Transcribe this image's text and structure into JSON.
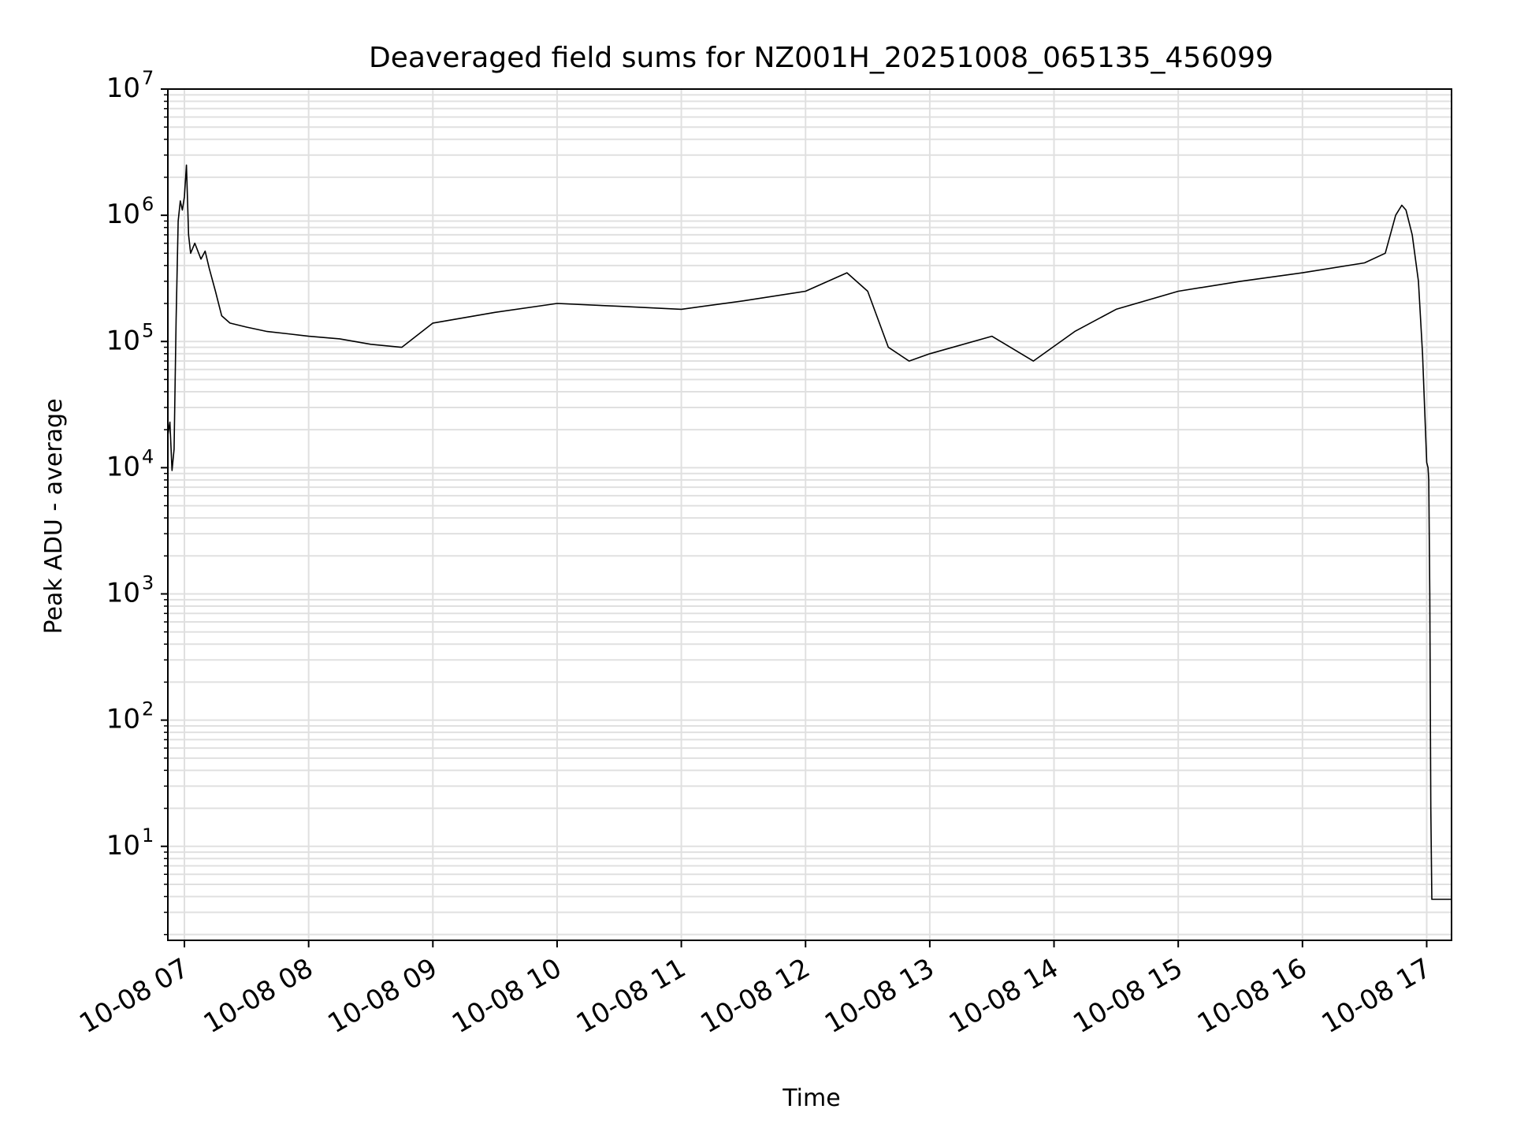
{
  "colors": {
    "line": "#000000",
    "grid": "#e0e0e0",
    "frame": "#000000",
    "background": "#ffffff"
  },
  "chart_data": {
    "type": "line",
    "title": "Deaveraged field sums for NZ001H_20251008_065135_456099",
    "xlabel": "Time",
    "ylabel": "Peak ADU - average",
    "yscale": "log",
    "xlim": [
      "2025-10-08 06:52",
      "2025-10-08 17:12"
    ],
    "ylim": [
      1.8,
      10000000
    ],
    "grid": true,
    "x_ticks": [
      {
        "t": "2025-10-08 07:00",
        "label": "10-08 07"
      },
      {
        "t": "2025-10-08 08:00",
        "label": "10-08 08"
      },
      {
        "t": "2025-10-08 09:00",
        "label": "10-08 09"
      },
      {
        "t": "2025-10-08 10:00",
        "label": "10-08 10"
      },
      {
        "t": "2025-10-08 11:00",
        "label": "10-08 11"
      },
      {
        "t": "2025-10-08 12:00",
        "label": "10-08 12"
      },
      {
        "t": "2025-10-08 13:00",
        "label": "10-08 13"
      },
      {
        "t": "2025-10-08 14:00",
        "label": "10-08 14"
      },
      {
        "t": "2025-10-08 15:00",
        "label": "10-08 15"
      },
      {
        "t": "2025-10-08 16:00",
        "label": "10-08 16"
      },
      {
        "t": "2025-10-08 17:00",
        "label": "10-08 17"
      }
    ],
    "y_ticks": [
      {
        "v": 10,
        "base": "10",
        "exp": "1"
      },
      {
        "v": 100,
        "base": "10",
        "exp": "2"
      },
      {
        "v": 1000,
        "base": "10",
        "exp": "3"
      },
      {
        "v": 10000,
        "base": "10",
        "exp": "4"
      },
      {
        "v": 100000,
        "base": "10",
        "exp": "5"
      },
      {
        "v": 1000000,
        "base": "10",
        "exp": "6"
      },
      {
        "v": 10000000,
        "base": "10",
        "exp": "7"
      }
    ],
    "series": [
      {
        "color": "#000000",
        "points": [
          [
            "2025-10-08 06:52",
            18000
          ],
          [
            "2025-10-08 06:53",
            23000
          ],
          [
            "2025-10-08 06:54",
            9500
          ],
          [
            "2025-10-08 06:55",
            14000
          ],
          [
            "2025-10-08 06:56",
            150000
          ],
          [
            "2025-10-08 06:57",
            900000
          ],
          [
            "2025-10-08 06:58",
            1300000
          ],
          [
            "2025-10-08 06:59",
            1100000
          ],
          [
            "2025-10-08 07:00",
            1400000
          ],
          [
            "2025-10-08 07:01",
            2500000
          ],
          [
            "2025-10-08 07:02",
            700000
          ],
          [
            "2025-10-08 07:03",
            500000
          ],
          [
            "2025-10-08 07:05",
            600000
          ],
          [
            "2025-10-08 07:08",
            450000
          ],
          [
            "2025-10-08 07:10",
            520000
          ],
          [
            "2025-10-08 07:12",
            380000
          ],
          [
            "2025-10-08 07:15",
            250000
          ],
          [
            "2025-10-08 07:18",
            160000
          ],
          [
            "2025-10-08 07:22",
            140000
          ],
          [
            "2025-10-08 07:30",
            130000
          ],
          [
            "2025-10-08 07:40",
            120000
          ],
          [
            "2025-10-08 07:50",
            115000
          ],
          [
            "2025-10-08 08:00",
            110000
          ],
          [
            "2025-10-08 08:15",
            105000
          ],
          [
            "2025-10-08 08:30",
            95000
          ],
          [
            "2025-10-08 08:45",
            90000
          ],
          [
            "2025-10-08 09:00",
            140000
          ],
          [
            "2025-10-08 09:30",
            170000
          ],
          [
            "2025-10-08 10:00",
            200000
          ],
          [
            "2025-10-08 10:30",
            190000
          ],
          [
            "2025-10-08 11:00",
            180000
          ],
          [
            "2025-10-08 11:30",
            210000
          ],
          [
            "2025-10-08 12:00",
            250000
          ],
          [
            "2025-10-08 12:20",
            350000
          ],
          [
            "2025-10-08 12:30",
            250000
          ],
          [
            "2025-10-08 12:40",
            90000
          ],
          [
            "2025-10-08 12:50",
            70000
          ],
          [
            "2025-10-08 13:00",
            80000
          ],
          [
            "2025-10-08 13:30",
            110000
          ],
          [
            "2025-10-08 13:50",
            70000
          ],
          [
            "2025-10-08 14:10",
            120000
          ],
          [
            "2025-10-08 14:30",
            180000
          ],
          [
            "2025-10-08 15:00",
            250000
          ],
          [
            "2025-10-08 15:30",
            300000
          ],
          [
            "2025-10-08 16:00",
            350000
          ],
          [
            "2025-10-08 16:30",
            420000
          ],
          [
            "2025-10-08 16:40",
            500000
          ],
          [
            "2025-10-08 16:45",
            1000000
          ],
          [
            "2025-10-08 16:48",
            1200000
          ],
          [
            "2025-10-08 16:50",
            1100000
          ],
          [
            "2025-10-08 16:53",
            700000
          ],
          [
            "2025-10-08 16:56",
            300000
          ],
          [
            "2025-10-08 16:58",
            80000
          ],
          [
            "2025-10-08 16:59",
            30000
          ],
          [
            "2025-10-08 17:00",
            11000
          ],
          [
            "2025-10-08 17:00:40",
            10000
          ],
          [
            "2025-10-08 17:01",
            8000
          ],
          [
            "2025-10-08 17:01:30",
            1000
          ],
          [
            "2025-10-08 17:02",
            20
          ],
          [
            "2025-10-08 17:02:30",
            3.8
          ],
          [
            "2025-10-08 17:12",
            3.8
          ]
        ]
      }
    ]
  }
}
